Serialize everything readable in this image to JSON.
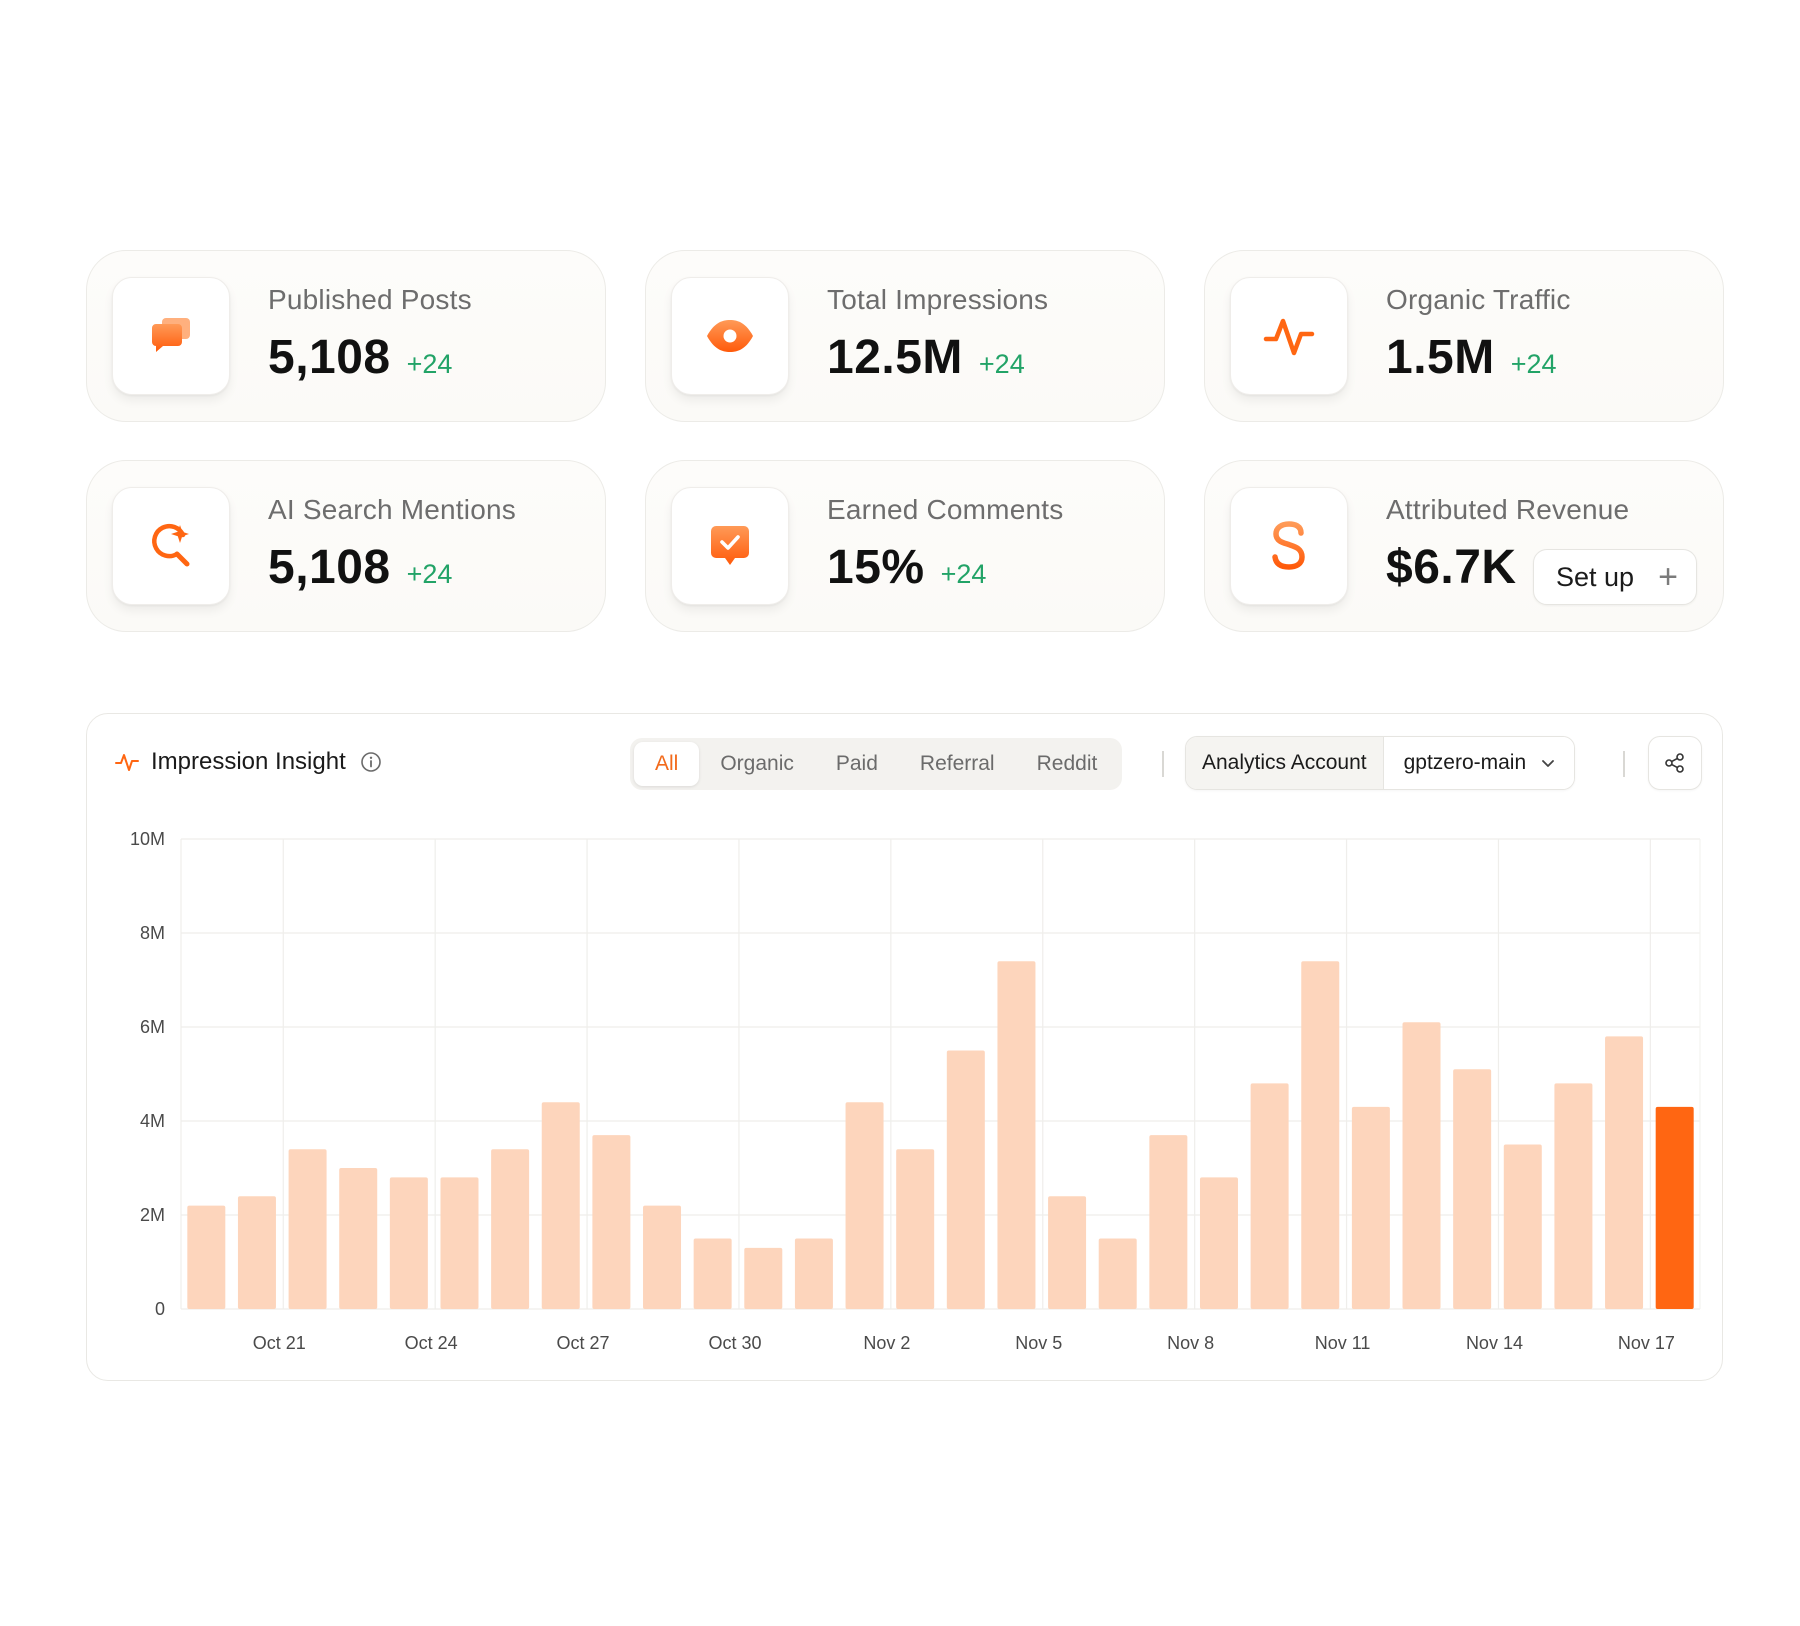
{
  "stats": [
    {
      "id": "published-posts",
      "icon": "chat-bubbles-icon",
      "label": "Published Posts",
      "value": "5,108",
      "delta": "+24"
    },
    {
      "id": "total-impressions",
      "icon": "eye-icon",
      "label": "Total Impressions",
      "value": "12.5M",
      "delta": "+24"
    },
    {
      "id": "organic-traffic",
      "icon": "pulse-icon",
      "label": "Organic Traffic",
      "value": "1.5M",
      "delta": "+24"
    },
    {
      "id": "ai-search-mentions",
      "icon": "sparkle-search-icon",
      "label": "AI Search Mentions",
      "value": "5,108",
      "delta": "+24"
    },
    {
      "id": "earned-comments",
      "icon": "comment-check-icon",
      "label": "Earned Comments",
      "value": "15%",
      "delta": "+24"
    },
    {
      "id": "attributed-revenue",
      "icon": "dollar-icon",
      "label": "Attributed Revenue",
      "value": "$6.7K",
      "action": "Set up"
    }
  ],
  "chart_panel": {
    "title": "Impression Insight",
    "tabs": [
      "All",
      "Organic",
      "Paid",
      "Referral",
      "Reddit"
    ],
    "active_tab": "All",
    "account_label": "Analytics Account",
    "account_value": "gptzero-main"
  },
  "colors": {
    "accent": "#ff6612",
    "bar": "#fdd5bc",
    "delta": "#22a367"
  },
  "chart_data": {
    "type": "bar",
    "ylim": [
      0,
      10000000
    ],
    "yticks": [
      0,
      2000000,
      4000000,
      6000000,
      8000000,
      10000000
    ],
    "ytick_labels": [
      "0",
      "2M",
      "4M",
      "6M",
      "8M",
      "10M"
    ],
    "xtick_labels": [
      "Oct 21",
      "Oct 24",
      "Oct 27",
      "Oct 30",
      "Nov 2",
      "Nov 5",
      "Nov 8",
      "Nov 11",
      "Nov 14",
      "Nov 17"
    ],
    "xtick_index": [
      2,
      5,
      8,
      11,
      14,
      17,
      20,
      23,
      26,
      29
    ],
    "values": [
      2200000,
      2400000,
      3400000,
      3000000,
      2800000,
      2800000,
      3400000,
      4400000,
      3700000,
      2200000,
      1500000,
      1300000,
      1500000,
      4400000,
      3400000,
      5500000,
      7400000,
      2400000,
      1500000,
      3700000,
      2800000,
      4800000,
      7400000,
      4300000,
      6100000,
      5100000,
      3500000,
      4800000,
      5800000,
      4300000
    ],
    "highlight_index": 29,
    "grid": true
  }
}
